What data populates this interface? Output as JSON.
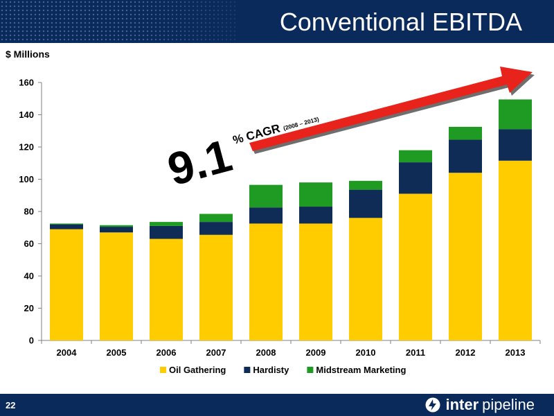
{
  "header": {
    "title": "Conventional EBITDA"
  },
  "units_label": "$ Millions",
  "annotation": {
    "big_number": "9.1",
    "suffix": "% CAGR",
    "period": "(2008 – 2013)"
  },
  "footer": {
    "page_number": "22",
    "brand_bold": "inter",
    "brand_regular": "pipeline"
  },
  "colors": {
    "header_bg": "#0b2a5c",
    "oil": "#ffcc00",
    "hardisty": "#0f2c57",
    "midstream": "#1f9a23",
    "arrow": "#e8231c"
  },
  "chart_data": {
    "type": "bar",
    "stacked": true,
    "title": "Conventional EBITDA",
    "ylabel": "$ Millions",
    "xlabel": "",
    "ylim": [
      0,
      160
    ],
    "yticks": [
      0,
      20,
      40,
      60,
      80,
      100,
      120,
      140,
      160
    ],
    "grid": false,
    "legend_position": "bottom",
    "categories": [
      "2004",
      "2005",
      "2006",
      "2007",
      "2008",
      "2009",
      "2010",
      "2011",
      "2012",
      "2013"
    ],
    "series": [
      {
        "name": "Oil Gathering",
        "color": "#ffcc00",
        "values": [
          69,
          67,
          63,
          65.5,
          72.5,
          72.5,
          76,
          91,
          104,
          111.5
        ]
      },
      {
        "name": "Hardisty",
        "color": "#0f2c57",
        "values": [
          3,
          3.5,
          8,
          8,
          10,
          10.5,
          17.5,
          19.5,
          20.5,
          19.5
        ]
      },
      {
        "name": "Midstream Marketing",
        "color": "#1f9a23",
        "values": [
          0.5,
          1,
          2.5,
          5,
          14,
          15,
          5.5,
          7.5,
          8,
          18.5
        ]
      }
    ]
  }
}
